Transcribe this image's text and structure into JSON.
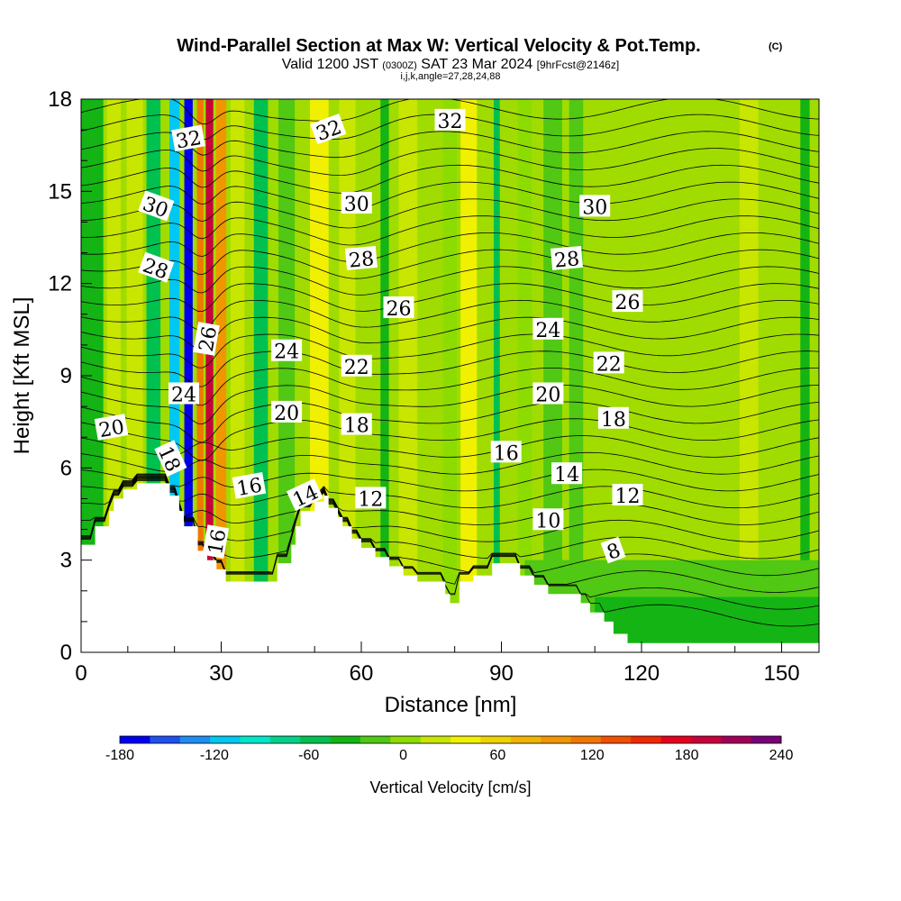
{
  "header": {
    "title": "Wind-Parallel Section at Max W: Vertical Velocity & Pot.Temp.",
    "copyright": "(C)",
    "valid_a": "Valid 1200 JST",
    "valid_b": "(0300Z)",
    "valid_c": "SAT 23 Mar 2024",
    "valid_d": "[9hrFcst@2146z]",
    "indices": "i,j,k,angle=27,28,24,88"
  },
  "chart_data": {
    "type": "heatmap",
    "xlabel": "Distance [nm]",
    "ylabel": "Height [Kft MSL]",
    "xlim": [
      0,
      158
    ],
    "ylim": [
      0,
      18
    ],
    "x_ticks": [
      "0",
      "30",
      "60",
      "90",
      "120",
      "150"
    ],
    "y_ticks": [
      "0",
      "3",
      "6",
      "9",
      "12",
      "15",
      "18"
    ],
    "colorbar": {
      "label": "Vertical Velocity [cm/s]",
      "min": -180,
      "max": 240,
      "step": 20,
      "tick_labels": [
        "-180",
        "-120",
        "-60",
        "0",
        "60",
        "120",
        "180",
        "240"
      ],
      "colors": [
        "#0000f0",
        "#1e50f0",
        "#1e8cf0",
        "#00c8f0",
        "#00e6c8",
        "#00d28c",
        "#00c050",
        "#14b414",
        "#50c814",
        "#8cdc00",
        "#c8e600",
        "#f0f000",
        "#f0d200",
        "#f0b400",
        "#f09600",
        "#f07800",
        "#f05000",
        "#f02800",
        "#e6001e",
        "#c8003c",
        "#a0005a",
        "#780078"
      ]
    },
    "velocity_columns": [
      {
        "x": 2,
        "w": 5.5,
        "v": -40
      },
      {
        "x": 7,
        "w": 3,
        "v": 20
      },
      {
        "x": 11.5,
        "w": 3.5,
        "v": 30
      },
      {
        "x": 15.5,
        "w": 3,
        "v": -45
      },
      {
        "x": 20,
        "w": 2.2,
        "v": -110
      },
      {
        "x": 23,
        "w": 1.8,
        "v": -170
      },
      {
        "x": 25.5,
        "w": 1.4,
        "v": 130
      },
      {
        "x": 27.5,
        "w": 1.6,
        "v": 200
      },
      {
        "x": 30,
        "w": 2.2,
        "v": 100
      },
      {
        "x": 33.5,
        "w": 3,
        "v": 35
      },
      {
        "x": 38.5,
        "w": 3,
        "v": -50
      },
      {
        "x": 44,
        "w": 3.5,
        "v": -20
      },
      {
        "x": 51,
        "w": 4,
        "v": 45
      },
      {
        "x": 57,
        "w": 3.5,
        "v": 35
      },
      {
        "x": 65,
        "w": 1.8,
        "v": -30
      },
      {
        "x": 70,
        "w": 4,
        "v": 20
      },
      {
        "x": 79,
        "w": 3,
        "v": 15
      },
      {
        "x": 83,
        "w": 3.5,
        "v": 40
      },
      {
        "x": 89,
        "w": 1.3,
        "v": -45
      },
      {
        "x": 95,
        "w": 3,
        "v": 15
      },
      {
        "x": 101,
        "w": 4,
        "v": -20
      },
      {
        "x": 106,
        "w": 3,
        "v": -10
      },
      {
        "x": 143,
        "w": 4,
        "v": 30
      },
      {
        "x": 155,
        "w": 2,
        "v": -30
      }
    ],
    "theta_levels": [
      {
        "value": 8,
        "h": 2.7
      },
      {
        "value": 10,
        "h": 3.4
      },
      {
        "value": 12,
        "h": 4.2
      },
      {
        "value": 14,
        "h": 5.1
      },
      {
        "value": 16,
        "h": 6.0
      },
      {
        "value": 18,
        "h": 7.0
      },
      {
        "value": 20,
        "h": 8.0
      },
      {
        "value": 22,
        "h": 9.1
      },
      {
        "value": 24,
        "h": 10.2
      },
      {
        "value": 26,
        "h": 11.2
      },
      {
        "value": 28,
        "h": 12.6
      },
      {
        "value": 30,
        "h": 14.1
      },
      {
        "value": 32,
        "h": 17.3
      }
    ],
    "contour_labels": [
      {
        "text": "32",
        "x": 23,
        "y": 16.7,
        "rot": -10
      },
      {
        "text": "32",
        "x": 53,
        "y": 17.0,
        "rot": -20
      },
      {
        "text": "32",
        "x": 79,
        "y": 17.3,
        "rot": 0
      },
      {
        "text": "30",
        "x": 16,
        "y": 14.5,
        "rot": 20
      },
      {
        "text": "30",
        "x": 59,
        "y": 14.6,
        "rot": 0
      },
      {
        "text": "30",
        "x": 110,
        "y": 14.5,
        "rot": 0
      },
      {
        "text": "28",
        "x": 16,
        "y": 12.5,
        "rot": 20
      },
      {
        "text": "28",
        "x": 60,
        "y": 12.8,
        "rot": -5
      },
      {
        "text": "28",
        "x": 104,
        "y": 12.8,
        "rot": -5
      },
      {
        "text": "26",
        "x": 27,
        "y": 10.2,
        "rot": -80
      },
      {
        "text": "26",
        "x": 68,
        "y": 11.2,
        "rot": 0
      },
      {
        "text": "26",
        "x": 117,
        "y": 11.4,
        "rot": 0
      },
      {
        "text": "24",
        "x": 44,
        "y": 9.8,
        "rot": 0
      },
      {
        "text": "24",
        "x": 100,
        "y": 10.5,
        "rot": 0
      },
      {
        "text": "24",
        "x": 22,
        "y": 8.4,
        "rot": 0
      },
      {
        "text": "22",
        "x": 59,
        "y": 9.3,
        "rot": 0
      },
      {
        "text": "22",
        "x": 113,
        "y": 9.4,
        "rot": 0
      },
      {
        "text": "20",
        "x": 6.5,
        "y": 7.3,
        "rot": -10
      },
      {
        "text": "20",
        "x": 44,
        "y": 7.8,
        "rot": 0
      },
      {
        "text": "20",
        "x": 100,
        "y": 8.4,
        "rot": 0
      },
      {
        "text": "18",
        "x": 59,
        "y": 7.4,
        "rot": 0
      },
      {
        "text": "18",
        "x": 114,
        "y": 7.6,
        "rot": 0
      },
      {
        "text": "18",
        "x": 19,
        "y": 6.3,
        "rot": 65
      },
      {
        "text": "16",
        "x": 91,
        "y": 6.5,
        "rot": 0
      },
      {
        "text": "16",
        "x": 36,
        "y": 5.4,
        "rot": -10
      },
      {
        "text": "16",
        "x": 29,
        "y": 3.6,
        "rot": -80
      },
      {
        "text": "14",
        "x": 104,
        "y": 5.8,
        "rot": 0
      },
      {
        "text": "14",
        "x": 48,
        "y": 5.1,
        "rot": -25
      },
      {
        "text": "12",
        "x": 62,
        "y": 5.0,
        "rot": 0
      },
      {
        "text": "12",
        "x": 117,
        "y": 5.1,
        "rot": 0
      },
      {
        "text": "10",
        "x": 100,
        "y": 4.3,
        "rot": 0
      },
      {
        "text": "8",
        "x": 114,
        "y": 3.3,
        "rot": -20
      }
    ],
    "terrain": [
      [
        0,
        3.5
      ],
      [
        3,
        3.5
      ],
      [
        3,
        4.1
      ],
      [
        6,
        4.1
      ],
      [
        6,
        4.6
      ],
      [
        7,
        4.6
      ],
      [
        7,
        5.0
      ],
      [
        9,
        5.0
      ],
      [
        9,
        5.3
      ],
      [
        12,
        5.3
      ],
      [
        12,
        5.5
      ],
      [
        19,
        5.5
      ],
      [
        19,
        5.1
      ],
      [
        21,
        5.1
      ],
      [
        21,
        4.6
      ],
      [
        22,
        4.6
      ],
      [
        22,
        4.1
      ],
      [
        25,
        4.1
      ],
      [
        25,
        3.3
      ],
      [
        27,
        3.3
      ],
      [
        27,
        3.0
      ],
      [
        29,
        3.0
      ],
      [
        29,
        2.7
      ],
      [
        31,
        2.7
      ],
      [
        31,
        2.3
      ],
      [
        42,
        2.3
      ],
      [
        42,
        2.9
      ],
      [
        45,
        2.9
      ],
      [
        45,
        3.5
      ],
      [
        46,
        3.5
      ],
      [
        46,
        4.1
      ],
      [
        47,
        4.1
      ],
      [
        47,
        4.6
      ],
      [
        50,
        4.6
      ],
      [
        50,
        4.9
      ],
      [
        52,
        4.9
      ],
      [
        52,
        5.1
      ],
      [
        53,
        5.1
      ],
      [
        53,
        4.7
      ],
      [
        55,
        4.7
      ],
      [
        55,
        4.4
      ],
      [
        56,
        4.4
      ],
      [
        56,
        4.1
      ],
      [
        58,
        4.1
      ],
      [
        58,
        3.7
      ],
      [
        60,
        3.7
      ],
      [
        60,
        3.4
      ],
      [
        63,
        3.4
      ],
      [
        63,
        3.1
      ],
      [
        66,
        3.1
      ],
      [
        66,
        2.8
      ],
      [
        69,
        2.8
      ],
      [
        69,
        2.5
      ],
      [
        72,
        2.5
      ],
      [
        72,
        2.3
      ],
      [
        78,
        2.3
      ],
      [
        78,
        1.9
      ],
      [
        79,
        1.9
      ],
      [
        79,
        1.6
      ],
      [
        81,
        1.6
      ],
      [
        81,
        2.3
      ],
      [
        84,
        2.3
      ],
      [
        84,
        2.5
      ],
      [
        88,
        2.5
      ],
      [
        88,
        2.9
      ],
      [
        94,
        2.9
      ],
      [
        94,
        2.5
      ],
      [
        97,
        2.5
      ],
      [
        97,
        2.2
      ],
      [
        100,
        2.2
      ],
      [
        100,
        1.9
      ],
      [
        107,
        1.9
      ],
      [
        107,
        1.6
      ],
      [
        109,
        1.6
      ],
      [
        109,
        1.3
      ],
      [
        112,
        1.3
      ],
      [
        112,
        1.0
      ],
      [
        114,
        1.0
      ],
      [
        114,
        0.6
      ],
      [
        117,
        0.6
      ],
      [
        117,
        0.3
      ],
      [
        158,
        0.3
      ],
      [
        158,
        0
      ]
    ]
  }
}
